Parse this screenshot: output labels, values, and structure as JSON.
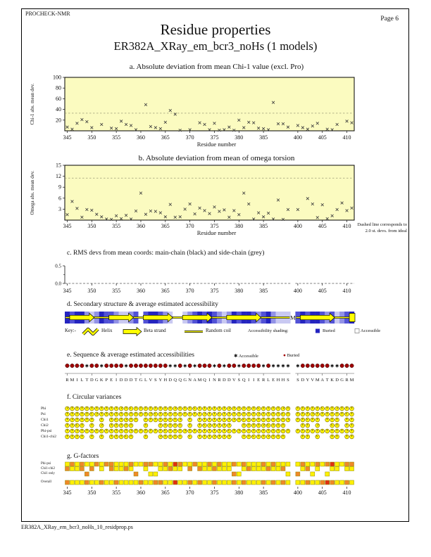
{
  "header": {
    "app_name": "PROCHECK-NMR",
    "page_label": "Page 6",
    "title": "Residue properties",
    "subtitle": "ER382A_XRay_em_bcr3_noHs (1 models)"
  },
  "footer": {
    "filename": "ER382A_XRay_em_bcr3_noHs_10_residprop.ps"
  },
  "x_axis": {
    "label": "Residue number",
    "ticks": [
      345,
      350,
      355,
      360,
      365,
      370,
      375,
      380,
      385,
      400,
      405,
      410
    ],
    "segments": [
      {
        "start": 345,
        "end": 390
      },
      {
        "start": 400,
        "end": 411
      }
    ]
  },
  "sequence": {
    "block1": "RMILTDGKPEIDDDTGLVSYHDQQGNAMQINRDDVSQIIERLEHHS",
    "block1_start": 345,
    "block2": "SDYVMATKDGRM",
    "block2_start": 400,
    "gap_label": "M"
  },
  "colors": {
    "plot_bg": "#FBFBC0",
    "marker": "#3a3a3a",
    "dashed": "#8a8a6a",
    "strand_yellow": "#FFFF00",
    "buried_blue": "#2424C0",
    "buried_symbol_red": "#A00000",
    "circle_yellow": "#FFF400"
  },
  "chart_data": [
    {
      "id": "a",
      "type": "scatter",
      "title": "a. Absolute deviation from mean Chi-1 value (excl. Pro)",
      "ylabel": "Chi-1 abs. mean dev.",
      "ylim": [
        0,
        100
      ],
      "yticks": [
        20,
        40,
        60,
        80,
        100
      ],
      "dashed_line_y": 33,
      "xlabel": "Residue number",
      "points": [
        [
          345,
          7
        ],
        [
          346,
          3
        ],
        [
          347,
          14
        ],
        [
          348,
          21
        ],
        [
          349,
          17
        ],
        [
          350,
          6
        ],
        [
          352,
          12
        ],
        [
          354,
          5
        ],
        [
          355,
          4
        ],
        [
          356,
          18
        ],
        [
          357,
          12
        ],
        [
          358,
          10
        ],
        [
          359,
          2
        ],
        [
          361,
          49
        ],
        [
          362,
          8
        ],
        [
          363,
          6
        ],
        [
          364,
          4
        ],
        [
          365,
          16
        ],
        [
          366,
          38
        ],
        [
          367,
          31
        ],
        [
          368,
          1
        ],
        [
          370,
          2
        ],
        [
          372,
          15
        ],
        [
          373,
          12
        ],
        [
          374,
          2
        ],
        [
          375,
          14
        ],
        [
          376,
          1
        ],
        [
          377,
          2
        ],
        [
          378,
          7
        ],
        [
          379,
          1
        ],
        [
          380,
          20
        ],
        [
          381,
          6
        ],
        [
          382,
          16
        ],
        [
          383,
          15
        ],
        [
          384,
          5
        ],
        [
          385,
          4
        ],
        [
          386,
          2
        ],
        [
          387,
          53
        ],
        [
          388,
          13
        ],
        [
          389,
          13
        ],
        [
          390,
          7
        ],
        [
          400,
          10
        ],
        [
          401,
          6
        ],
        [
          402,
          3
        ],
        [
          403,
          9
        ],
        [
          404,
          14
        ],
        [
          406,
          3
        ],
        [
          407,
          2
        ],
        [
          408,
          12
        ],
        [
          410,
          18
        ],
        [
          411,
          15
        ]
      ]
    },
    {
      "id": "b",
      "type": "scatter",
      "title": "b. Absolute deviation from mean of omega torsion",
      "ylabel": "Omega abs. mean dev.",
      "ylim": [
        0,
        15
      ],
      "yticks": [
        3,
        6,
        9,
        12,
        15
      ],
      "dashed_line_y": 11.5,
      "xlabel": "Residue number",
      "note1": "Dashed line corresponds to",
      "note2": "2.0 st. devs. from ideal",
      "points": [
        [
          345,
          1.5
        ],
        [
          346,
          5.1
        ],
        [
          347,
          3.2
        ],
        [
          348,
          0.8
        ],
        [
          349,
          2.9
        ],
        [
          350,
          2.7
        ],
        [
          351,
          1.6
        ],
        [
          352,
          0.9
        ],
        [
          353,
          0.3
        ],
        [
          354,
          0.2
        ],
        [
          355,
          1.2
        ],
        [
          356,
          0.4
        ],
        [
          357,
          1.3
        ],
        [
          358,
          0.3
        ],
        [
          359,
          2.5
        ],
        [
          360,
          7.4
        ],
        [
          361,
          1.6
        ],
        [
          362,
          2.5
        ],
        [
          363,
          2.4
        ],
        [
          364,
          2.0
        ],
        [
          365,
          0.9
        ],
        [
          366,
          4.3
        ],
        [
          367,
          0.8
        ],
        [
          368,
          0.9
        ],
        [
          369,
          3.0
        ],
        [
          370,
          4.4
        ],
        [
          371,
          1.7
        ],
        [
          372,
          3.3
        ],
        [
          373,
          2.6
        ],
        [
          374,
          1.8
        ],
        [
          375,
          3.6
        ],
        [
          376,
          2.4
        ],
        [
          377,
          2.8
        ],
        [
          378,
          0.8
        ],
        [
          379,
          2.6
        ],
        [
          380,
          1.5
        ],
        [
          381,
          7.4
        ],
        [
          382,
          4.4
        ],
        [
          383,
          0.3
        ],
        [
          384,
          2.0
        ],
        [
          385,
          0.9
        ],
        [
          386,
          1.9
        ],
        [
          387,
          0.3
        ],
        [
          388,
          5.5
        ],
        [
          389,
          0.2
        ],
        [
          390,
          2.9
        ],
        [
          400,
          2.9
        ],
        [
          402,
          5.9
        ],
        [
          403,
          4.4
        ],
        [
          404,
          0.7
        ],
        [
          405,
          4.2
        ],
        [
          406,
          0.4
        ],
        [
          407,
          1.2
        ],
        [
          408,
          2.9
        ],
        [
          409,
          4.7
        ],
        [
          410,
          2.6
        ],
        [
          411,
          3.3
        ]
      ]
    },
    {
      "id": "c",
      "type": "line",
      "title": "c. RMS devs from mean coords: main-chain (black) and side-chain (grey)",
      "yticks": [
        "0.5",
        "0.0"
      ],
      "ylim": [
        0,
        0.5
      ],
      "main_chain_value": 0.0,
      "side_chain_value": 0.0
    },
    {
      "id": "d",
      "type": "secondary-structure",
      "title": "d. Secondary structure & average estimated accessibility",
      "key": {
        "intro": "Key:-",
        "helix": "Helix",
        "strand": "Beta strand",
        "coil": "Random coil",
        "shading_label": "Accessibility shading:",
        "buried": "Buried",
        "accessible": "Accessible"
      },
      "strands": [
        [
          346,
          350
        ],
        [
          354,
          358
        ],
        [
          361,
          366
        ],
        [
          369,
          374
        ],
        [
          378,
          384
        ],
        [
          401,
          407
        ]
      ],
      "terminal_strand_box": 411,
      "gap_label": "M",
      "shading_block1": [
        4,
        3,
        4,
        4,
        2,
        1,
        2,
        4,
        3,
        3,
        2,
        1,
        1,
        2,
        3,
        0,
        3,
        4,
        4,
        3,
        2,
        1,
        0,
        0,
        1,
        2,
        3,
        4,
        3,
        4,
        3,
        2,
        1,
        2,
        4,
        3,
        4,
        4,
        3,
        2,
        3,
        4,
        2,
        1,
        1,
        1
      ],
      "shading_block2": [
        3,
        4,
        3,
        4,
        4,
        3,
        2,
        3,
        1,
        2,
        3,
        4
      ],
      "shading_levels": {
        "0": "#FFFFFF",
        "1": "#C9C9F2",
        "2": "#9292E6",
        "3": "#5252D6",
        "4": "#2424C0"
      }
    },
    {
      "id": "e",
      "type": "sequence",
      "title": "e. Sequence & average estimated accessibilities",
      "legend": {
        "accessible_symbol": "✱",
        "accessible": "Accessible",
        "buried_symbol": "●",
        "buried": "Buried"
      },
      "access_block1": "BBBBABBABBBBABBBBBBBBAABABABBBABABBABBBBABAAAA",
      "access_block2": "ABBBBBBAABBB"
    },
    {
      "id": "f",
      "type": "circular-variance",
      "title": "f. Circular variances",
      "row_labels": [
        "Phi",
        "Psi",
        "Chi1",
        "Chi2",
        "Phi-psi",
        "Chi1-chi2"
      ]
    },
    {
      "id": "g",
      "type": "g-factors",
      "title": "g. G-factors",
      "row_labels": [
        "Phi-psi",
        "Chi1-chi2",
        "Chi1 only",
        "Overall"
      ],
      "square_colors": {
        "phi_psi": "yoyoyyoyooyyyoyyooyyoyroyyoyyoyoyyoyoyyyoyoyyyyoyyoyoryyoo",
        "chi1_chi2": "oyyoyoyyyoyyoyroyyoyyoyyyoyoyyoyyyoyyoyyyoyyoyyyoyyooyyoyy",
        "chi1_only": "yyyyoyyyyyyyyyoyyyyyyyyyyyyyyyyyyyoyyyyyyyyyyyoyyyyyyyyyy",
        "overall": "oyyyoyyoyyoyyyyoyyooyyryyoyoyyoyyyoyoyyyoyoyoyyyoyyoroyyoy"
      },
      "color_map": {
        "y": "#FFF000",
        "o": "#F08828",
        "r": "#E03010"
      }
    }
  ]
}
